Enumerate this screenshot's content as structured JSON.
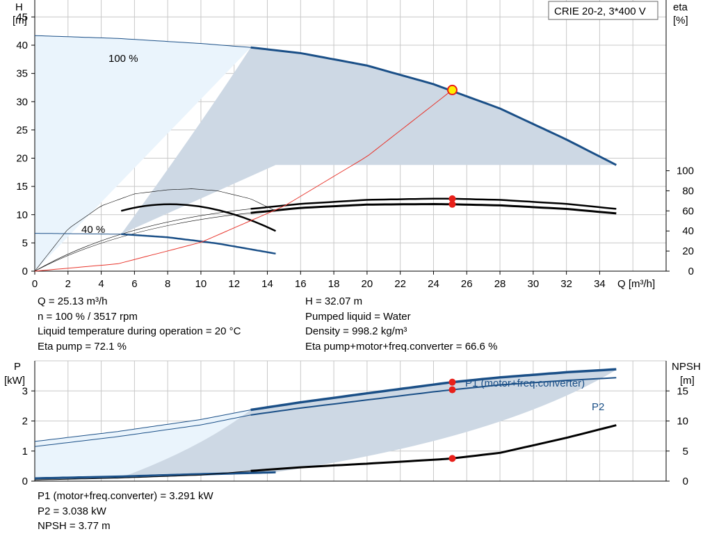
{
  "title_box": "CRIE 20-2, 3*400 V",
  "axes": {
    "h_label": "H",
    "h_unit": "[m]",
    "eta_label": "eta",
    "eta_unit": "[%]",
    "q_label": "Q [m³/h]",
    "p_label": "P",
    "p_unit": "[kW]",
    "npsh_label": "NPSH",
    "npsh_unit": "[m]"
  },
  "labels": {
    "speed_100": "100 %",
    "speed_40": "40 %",
    "p1_curve": "P1 (motor+freq.converter)",
    "p2_curve": "P2"
  },
  "info_top_left": [
    "Q = 25.13 m³/h",
    "n = 100 % / 3517 rpm",
    "Liquid temperature during operation = 20 °C",
    "Eta pump = 72.1 %"
  ],
  "info_top_right": [
    "H = 32.07 m",
    "Pumped liquid = Water",
    "Density = 998.2 kg/m³",
    "Eta pump+motor+freq.converter = 66.6 %"
  ],
  "info_bottom": [
    "P1 (motor+freq.converter) = 3.291 kW",
    "P2 = 3.038 kW",
    "NPSH = 3.77 m"
  ],
  "colors": {
    "head_curve": "#1a4f87",
    "power_curve": "#1a4f87",
    "eta_curve": "#000000",
    "system_curve": "#e8342b",
    "duty_point": "#e8201a",
    "duty_point_fill": "#ffee00",
    "area_dark": "#cdd8e4",
    "area_light": "#eaf4fc",
    "grid": "#c8c8c8"
  },
  "chart_data": [
    {
      "type": "line",
      "title": "CRIE 20-2, 3*400 V",
      "xlabel": "Q [m³/h]",
      "ylabel": "H [m]",
      "y2label": "eta [%]",
      "xlim": [
        0,
        38
      ],
      "ylim": [
        0,
        48
      ],
      "y2lim": [
        0,
        270
      ],
      "x_ticks": [
        0,
        2,
        4,
        6,
        8,
        10,
        12,
        14,
        16,
        18,
        20,
        22,
        24,
        26,
        28,
        30,
        32,
        34
      ],
      "y_ticks": [
        0,
        5,
        10,
        15,
        20,
        25,
        30,
        35,
        40,
        45
      ],
      "y2_ticks": [
        0,
        20,
        40,
        60,
        80,
        100
      ],
      "grid": true,
      "series": [
        {
          "name": "100 %",
          "axis": "H",
          "x": [
            0,
            5,
            10,
            13,
            16,
            20,
            24,
            28,
            32,
            35
          ],
          "values": [
            41.7,
            41.2,
            40.3,
            39.6,
            38.6,
            36.4,
            33.1,
            28.8,
            23.3,
            18.8
          ]
        },
        {
          "name": "40 %",
          "axis": "H",
          "x": [
            0,
            3,
            5.2,
            8,
            11,
            14.5
          ],
          "values": [
            6.7,
            6.6,
            6.55,
            6.0,
            4.9,
            3.1
          ]
        },
        {
          "name": "eta pump",
          "axis": "eta",
          "x": [
            0,
            5,
            10,
            13,
            16,
            20,
            24,
            25.13,
            28,
            32,
            35
          ],
          "values": [
            0,
            37,
            56,
            62,
            67,
            71,
            72.2,
            72.1,
            71,
            67,
            62
          ]
        },
        {
          "name": "eta pump+motor+freq.converter",
          "axis": "eta",
          "x": [
            0,
            5,
            10,
            13,
            16,
            20,
            24,
            25.13,
            28,
            32,
            35
          ],
          "values": [
            0,
            35,
            53,
            58,
            63,
            66.3,
            66.8,
            66.6,
            65.5,
            62,
            57.5
          ]
        },
        {
          "name": "eta 40 %",
          "axis": "eta",
          "x": [
            0,
            2,
            4,
            6,
            8,
            9.5,
            11,
            13,
            14.5
          ],
          "values": [
            0,
            42,
            65,
            77,
            81,
            82,
            80,
            72,
            60
          ]
        },
        {
          "name": "system curve",
          "axis": "H",
          "x": [
            0,
            5,
            10,
            15,
            20,
            25.13
          ],
          "values": [
            0,
            1.3,
            5.1,
            11.5,
            20.3,
            32.07
          ]
        }
      ],
      "duty_point": {
        "Q": 25.13,
        "H": 32.07,
        "eta_pump": 72.1,
        "eta_total": 66.6
      }
    },
    {
      "type": "line",
      "xlabel": "Q [m³/h]",
      "ylabel": "P [kW]",
      "y2label": "NPSH [m]",
      "xlim": [
        0,
        38
      ],
      "ylim": [
        0,
        4
      ],
      "y2lim": [
        0,
        20
      ],
      "y_ticks": [
        0,
        1,
        2,
        3
      ],
      "y2_ticks": [
        0,
        5,
        10,
        15
      ],
      "grid": true,
      "series": [
        {
          "name": "P1 (motor+freq.converter)",
          "axis": "P",
          "x": [
            0,
            5,
            10,
            13,
            16,
            20,
            24,
            25.13,
            28,
            32,
            35
          ],
          "values": [
            1.32,
            1.65,
            2.05,
            2.37,
            2.62,
            2.92,
            3.21,
            3.291,
            3.45,
            3.62,
            3.72
          ]
        },
        {
          "name": "P2",
          "axis": "P",
          "x": [
            0,
            5,
            10,
            13,
            16,
            20,
            24,
            25.13,
            28,
            32,
            35
          ],
          "values": [
            1.15,
            1.48,
            1.87,
            2.2,
            2.43,
            2.7,
            2.97,
            3.038,
            3.2,
            3.35,
            3.44
          ]
        },
        {
          "name": "NPSH",
          "axis": "NPSH",
          "x": [
            0,
            5,
            10,
            13,
            16,
            20,
            24,
            25.13,
            28,
            32,
            35
          ],
          "values": [
            0.2,
            0.5,
            1.0,
            1.7,
            2.3,
            2.9,
            3.55,
            3.77,
            4.7,
            7.2,
            9.3
          ]
        },
        {
          "name": "P1 40 %",
          "axis": "P",
          "x": [
            0,
            5.2,
            10,
            14.5
          ],
          "values": [
            0.1,
            0.16,
            0.24,
            0.3
          ]
        },
        {
          "name": "P2 40 %",
          "axis": "P",
          "x": [
            0,
            5.2,
            10,
            14.5
          ],
          "values": [
            0.07,
            0.12,
            0.2,
            0.27
          ]
        }
      ],
      "duty_point": {
        "Q": 25.13,
        "P1": 3.291,
        "P2": 3.038,
        "NPSH": 3.77
      }
    }
  ]
}
